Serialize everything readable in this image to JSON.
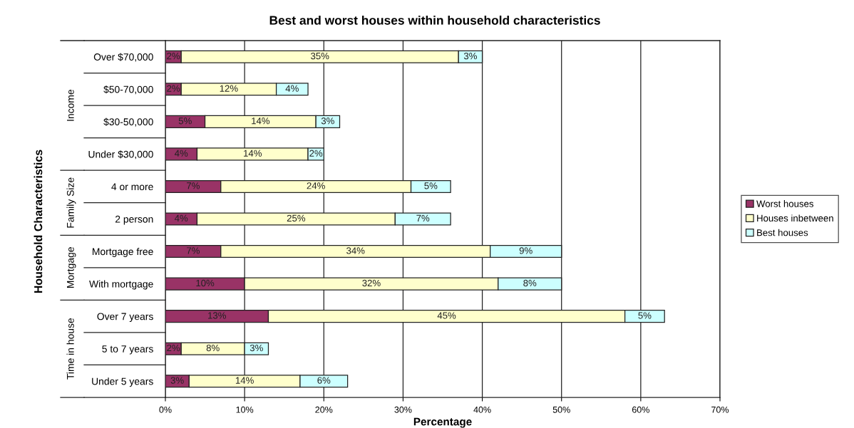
{
  "chart_data": {
    "type": "bar",
    "orientation": "horizontal",
    "stacked": true,
    "title": "Best and worst houses within household characteristics",
    "xlabel": "Percentage",
    "ylabel": "Household Characteristics",
    "categories": [
      "Over $70,000",
      "$50-70,000",
      "$30-50,000",
      "Under $30,000",
      "4 or more",
      "2 person",
      "Mortgage free",
      "With mortgage",
      "Over 7 years",
      "5 to 7 years",
      "Under 5 years"
    ],
    "series": [
      {
        "name": "Worst houses",
        "color": "#993366",
        "values": [
          2,
          2,
          5,
          4,
          7,
          4,
          7,
          10,
          13,
          2,
          3
        ],
        "value_labels": [
          "2%",
          "2%",
          "5%",
          "4%",
          "7%",
          "4%",
          "7%",
          "10%",
          "13%",
          "2%",
          "3%"
        ]
      },
      {
        "name": "Houses inbetween",
        "color": "#ffffcc",
        "values": [
          35,
          12,
          14,
          14,
          24,
          25,
          34,
          32,
          45,
          8,
          14
        ],
        "value_labels": [
          "35%",
          "12%",
          "14%",
          "14%",
          "24%",
          "25%",
          "34%",
          "32%",
          "45%",
          "8%",
          "14%"
        ]
      },
      {
        "name": "Best houses",
        "color": "#ccffff",
        "values": [
          3,
          4,
          3,
          2,
          5,
          7,
          9,
          8,
          5,
          3,
          6
        ],
        "value_labels": [
          "3%",
          "4%",
          "3%",
          "2%",
          "5%",
          "7%",
          "9%",
          "8%",
          "5%",
          "3%",
          "6%"
        ]
      }
    ],
    "xlim": [
      0,
      70
    ],
    "xticks": [
      {
        "value": 0,
        "label": "0%"
      },
      {
        "value": 10,
        "label": "10%"
      },
      {
        "value": 20,
        "label": "20%"
      },
      {
        "value": 30,
        "label": "30%"
      },
      {
        "value": 40,
        "label": "40%"
      },
      {
        "value": 50,
        "label": "50%"
      },
      {
        "value": 60,
        "label": "60%"
      },
      {
        "value": 70,
        "label": "70%"
      }
    ],
    "grid": "x",
    "legend": "right",
    "annotations": [
      "Income",
      "Family Size",
      "Mortgage",
      "Time in house"
    ]
  }
}
